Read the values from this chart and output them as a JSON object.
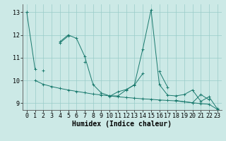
{
  "title": "",
  "xlabel": "Humidex (Indice chaleur)",
  "x_values": [
    0,
    1,
    2,
    3,
    4,
    5,
    6,
    7,
    8,
    9,
    10,
    11,
    12,
    13,
    14,
    15,
    16,
    17,
    18,
    19,
    20,
    21,
    22,
    23
  ],
  "lines": [
    [
      13.0,
      10.5,
      null,
      null,
      11.7,
      12.0,
      11.85,
      11.05,
      9.82,
      9.45,
      9.32,
      9.32,
      9.58,
      9.82,
      11.38,
      13.1,
      9.82,
      9.35,
      9.32,
      9.38,
      9.58,
      9.08,
      9.28,
      8.75
    ],
    [
      13.0,
      null,
      null,
      null,
      11.65,
      11.95,
      null,
      10.8,
      null,
      null,
      9.3,
      9.5,
      9.6,
      9.8,
      10.3,
      null,
      10.4,
      9.7,
      null,
      null,
      null,
      null,
      null,
      null
    ],
    [
      null,
      10.0,
      9.83,
      9.73,
      9.65,
      9.58,
      9.52,
      9.46,
      9.4,
      9.36,
      9.32,
      9.28,
      9.25,
      9.22,
      9.19,
      9.17,
      9.14,
      9.12,
      9.1,
      9.06,
      9.02,
      8.98,
      8.95,
      8.73
    ],
    [
      null,
      null,
      10.45,
      null,
      null,
      null,
      null,
      null,
      null,
      null,
      null,
      null,
      null,
      null,
      null,
      null,
      null,
      null,
      9.12,
      9.06,
      9.02,
      9.38,
      9.15,
      null
    ]
  ],
  "xlim": [
    -0.5,
    23.5
  ],
  "ylim": [
    8.7,
    13.35
  ],
  "yticks": [
    9,
    10,
    11,
    12,
    13
  ],
  "xticks": [
    0,
    1,
    2,
    3,
    4,
    5,
    6,
    7,
    8,
    9,
    10,
    11,
    12,
    13,
    14,
    15,
    16,
    17,
    18,
    19,
    20,
    21,
    22,
    23
  ],
  "bg_color": "#cce9e6",
  "grid_color": "#99ccc8",
  "line_color": "#1a7a6e",
  "tick_fontsize": 6,
  "label_fontsize": 7,
  "linewidth": 0.7,
  "markersize": 2.5,
  "markeredgewidth": 0.7
}
